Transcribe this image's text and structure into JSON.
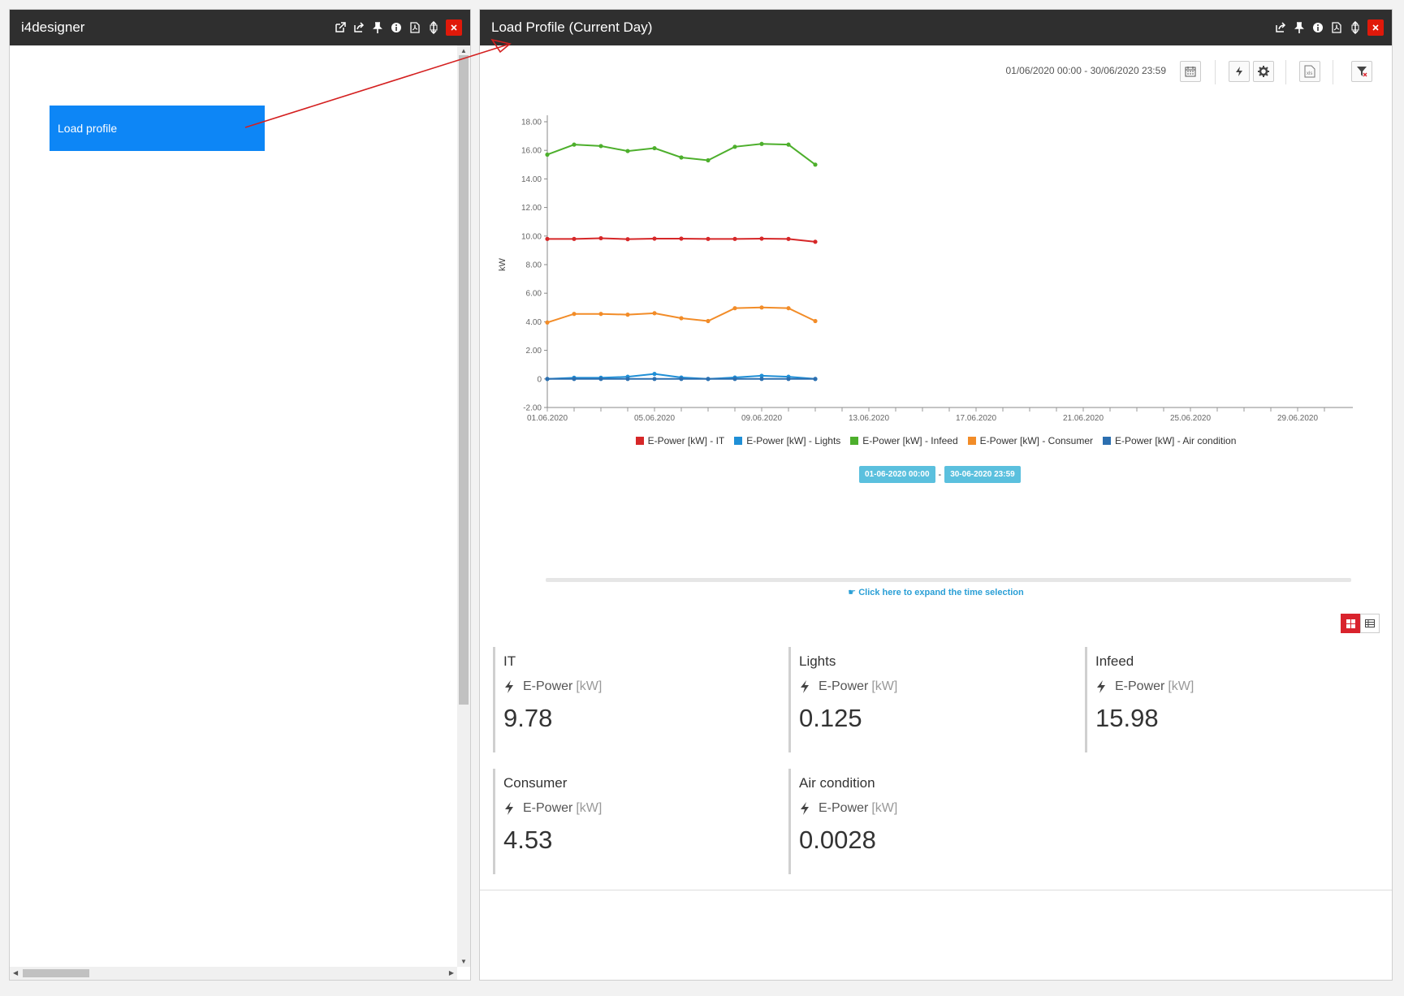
{
  "left_window": {
    "title": "i4designer",
    "button_label": "Load profile"
  },
  "right_window": {
    "title": "Load Profile (Current Day)",
    "date_range": "01/06/2020 00:00 - 30/06/2020 23:59",
    "range_start": "01-06-2020 00:00",
    "range_end": "30-06-2020 23:59",
    "range_separator": "-",
    "expand_link": "Click here to expand the time selection"
  },
  "chart_data": {
    "type": "line",
    "ylabel": "kW",
    "ylim": [
      -2,
      18
    ],
    "yticks": [
      "18.00",
      "16.00",
      "14.00",
      "12.00",
      "10.00",
      "8.00",
      "6.00",
      "4.00",
      "2.00",
      "0",
      "-2.00"
    ],
    "xticks": [
      "01.06.2020",
      "05.06.2020",
      "09.06.2020",
      "13.06.2020",
      "17.06.2020",
      "21.06.2020",
      "25.06.2020",
      "29.06.2020"
    ],
    "x_days_range": [
      1,
      30
    ],
    "x": [
      1,
      2,
      3,
      4,
      5,
      6,
      7,
      8,
      9,
      10,
      11
    ],
    "series": [
      {
        "name": "E-Power [kW] - IT",
        "color": "#d62728",
        "values": [
          9.8,
          9.8,
          9.85,
          9.78,
          9.82,
          9.82,
          9.8,
          9.8,
          9.82,
          9.8,
          9.6
        ]
      },
      {
        "name": "E-Power [kW] - Lights",
        "color": "#1f8fd6",
        "values": [
          0.0,
          0.08,
          0.08,
          0.15,
          0.35,
          0.1,
          0.0,
          0.1,
          0.22,
          0.15,
          0.0
        ]
      },
      {
        "name": "E-Power [kW] - Infeed",
        "color": "#4daf2c",
        "values": [
          15.7,
          16.4,
          16.3,
          15.95,
          16.15,
          15.5,
          15.3,
          16.25,
          16.45,
          16.4,
          15.0
        ]
      },
      {
        "name": "E-Power [kW] - Consumer",
        "color": "#f28c28",
        "values": [
          3.95,
          4.55,
          4.55,
          4.5,
          4.6,
          4.25,
          4.05,
          4.95,
          5.0,
          4.95,
          4.05
        ]
      },
      {
        "name": "E-Power [kW] - Air condition",
        "color": "#2c6fb0",
        "values": [
          0.0,
          0.0,
          0.0,
          0.0,
          0.0,
          0.0,
          0.0,
          0.0,
          0.0,
          0.0,
          0.0
        ]
      }
    ],
    "legend_position": "bottom",
    "grid": false
  },
  "cards": [
    {
      "name": "IT",
      "measure": "E-Power",
      "unit": "[kW]",
      "value": "9.78"
    },
    {
      "name": "Lights",
      "measure": "E-Power",
      "unit": "[kW]",
      "value": "0.125"
    },
    {
      "name": "Infeed",
      "measure": "E-Power",
      "unit": "[kW]",
      "value": "15.98"
    },
    {
      "name": "Consumer",
      "measure": "E-Power",
      "unit": "[kW]",
      "value": "4.53"
    },
    {
      "name": "Air condition",
      "measure": "E-Power",
      "unit": "[kW]",
      "value": "0.0028"
    }
  ],
  "icons": {
    "titlebar": [
      "external-link-icon",
      "share-icon",
      "pin-icon",
      "info-icon",
      "pdf-icon",
      "resize-icon",
      "close-icon"
    ],
    "toolbar": [
      "calendar-icon",
      "compare-icon",
      "gear-icon",
      "excel-icon",
      "filter-clear-icon"
    ],
    "card_measure": "lightning-icon",
    "view_toggle": [
      "grid-view-icon",
      "table-view-icon"
    ]
  },
  "colors": {
    "titlebar": "#2f2f2f",
    "close": "#e0190a",
    "button": "#0d86f6",
    "range_tag": "#5bc0de",
    "active_toggle": "#d9232d"
  }
}
